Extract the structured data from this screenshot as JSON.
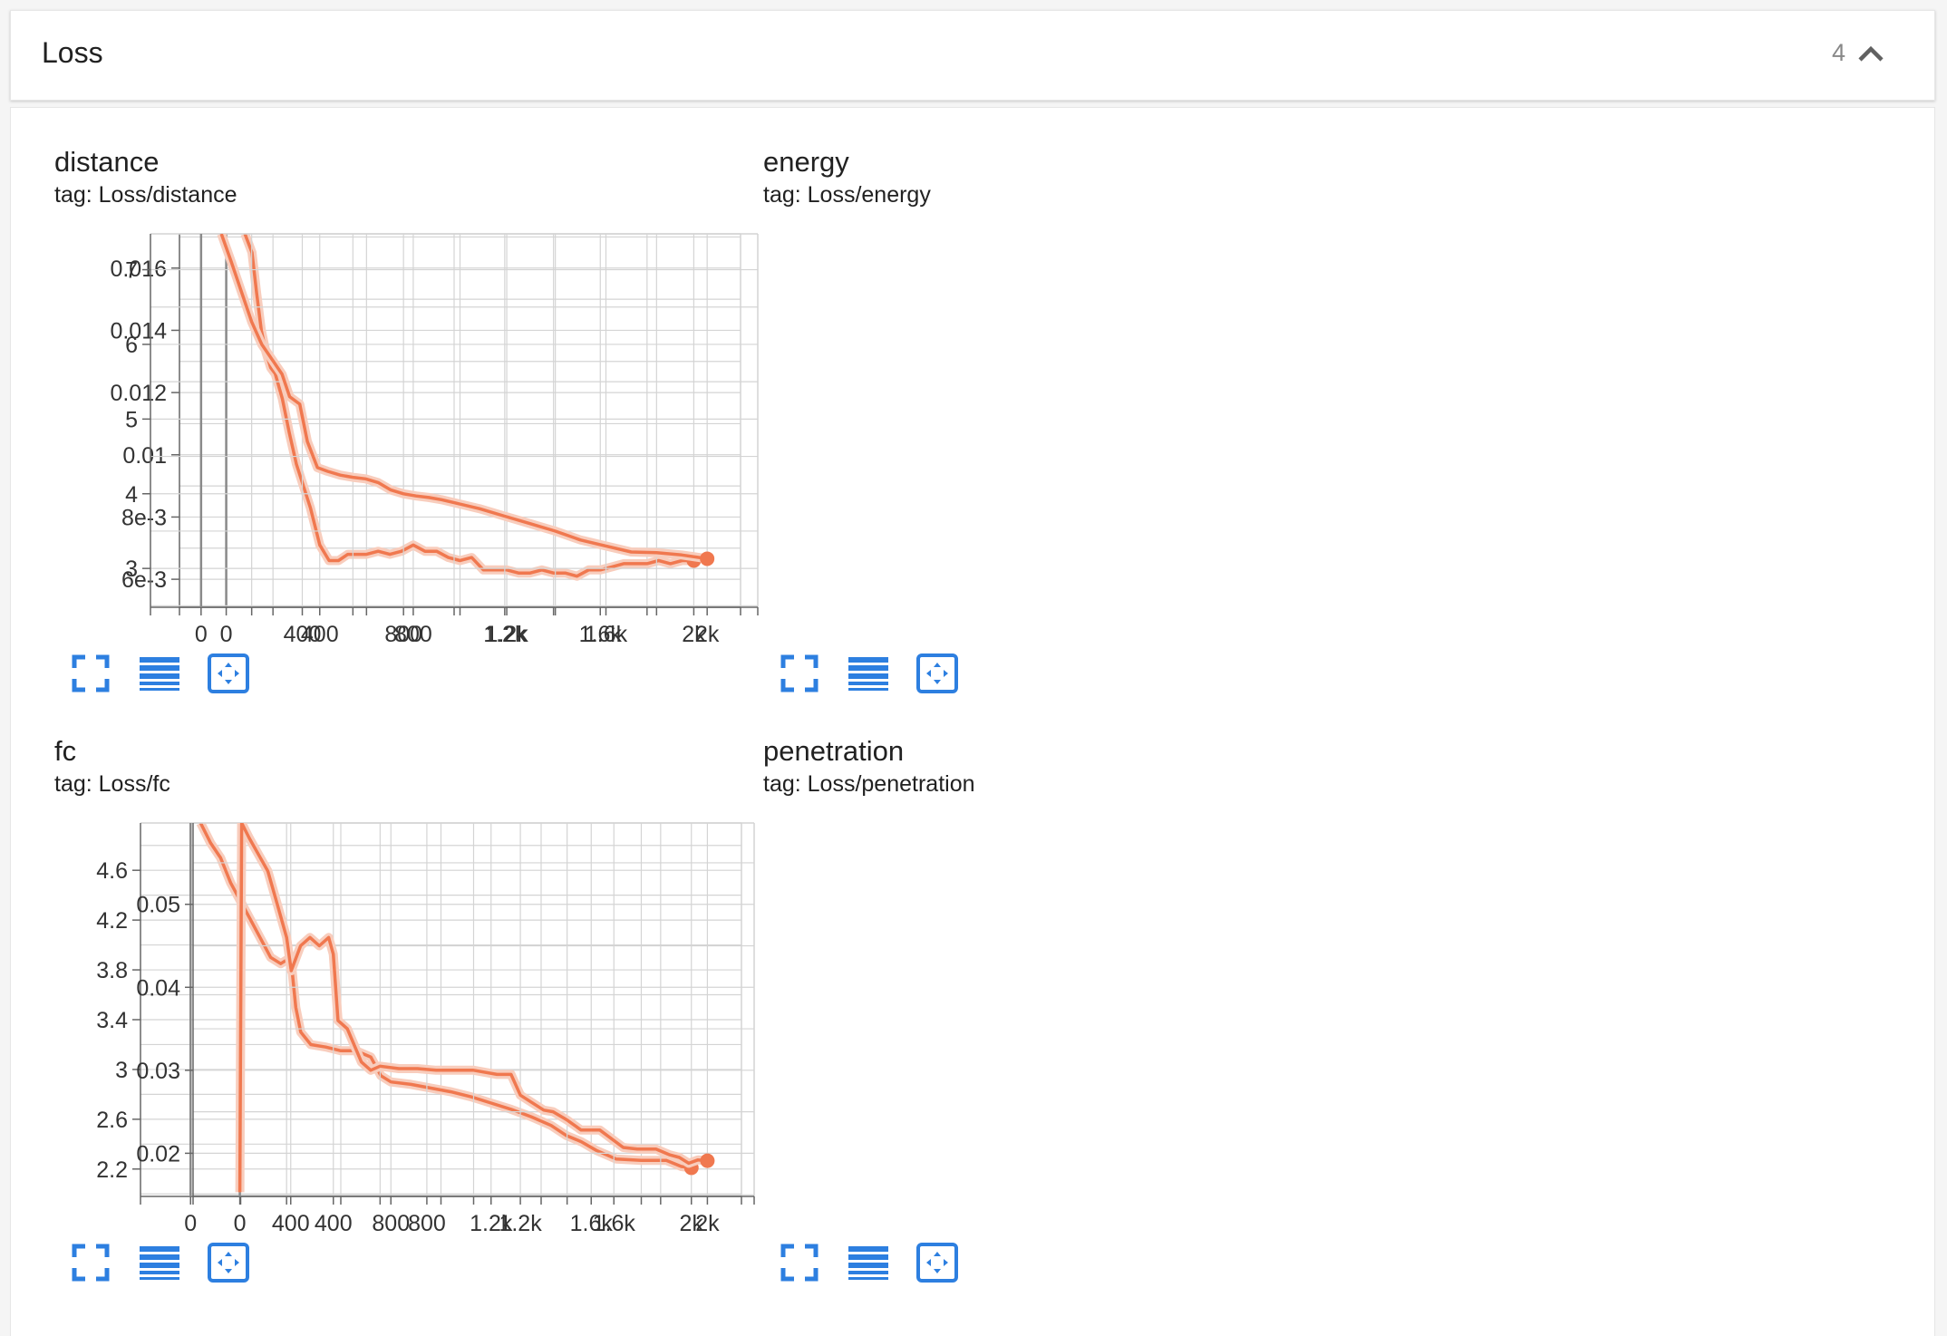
{
  "section": {
    "title": "Loss",
    "count": "4",
    "collapse_icon": "chevron-up-icon"
  },
  "colors": {
    "line": "#f0784f",
    "line_faint": "#f8cdbd",
    "grid": "#d4d4d4",
    "zero_line": "#8a8a8a",
    "tool_icon": "#2d7fe0"
  },
  "toolbar": {
    "icons": [
      "fullscreen-icon",
      "toggle-log-scale-icon",
      "fit-domain-icon"
    ]
  },
  "chart_data": [
    {
      "type": "line",
      "title": "distance",
      "tag": "tag: Loss/distance",
      "xlim": [
        -200,
        2200
      ],
      "ylim": [
        0.0051,
        0.0171
      ],
      "xticks": [
        0,
        400,
        800,
        1200,
        1600,
        2000
      ],
      "xtick_labels": [
        "0",
        "400",
        "800",
        "1.2k",
        "1.6k",
        "2k"
      ],
      "yticks": [
        0.006,
        0.008,
        0.01,
        0.012,
        0.014,
        0.016
      ],
      "ytick_labels": [
        "6e-3",
        "8e-3",
        "0.01",
        "0.012",
        "0.014",
        "0.016"
      ],
      "grid": true,
      "series": [
        {
          "x": [
            80,
            110,
            130,
            150,
            170,
            190,
            210,
            240,
            270,
            300,
            330,
            360,
            400,
            440,
            480,
            520,
            560,
            600,
            650,
            700,
            750,
            800,
            850,
            900,
            950,
            1000,
            1050,
            1100,
            1150,
            1200,
            1250,
            1300,
            1350,
            1400,
            1450,
            1500,
            1550,
            1600,
            1650,
            1700,
            1750,
            1800,
            1850,
            1900,
            1950,
            2000
          ],
          "y": [
            0.0171,
            0.0165,
            0.0152,
            0.014,
            0.0133,
            0.0128,
            0.0126,
            0.0118,
            0.0107,
            0.0097,
            0.009,
            0.0083,
            0.0071,
            0.0066,
            0.0066,
            0.0068,
            0.0068,
            0.0068,
            0.0069,
            0.0068,
            0.0069,
            0.0071,
            0.0069,
            0.0069,
            0.0067,
            0.0066,
            0.0067,
            0.0063,
            0.0063,
            0.0063,
            0.0062,
            0.0062,
            0.0063,
            0.0062,
            0.0062,
            0.0061,
            0.0063,
            0.0063,
            0.0064,
            0.0065,
            0.0065,
            0.0065,
            0.0066,
            0.0065,
            0.0066,
            0.0066
          ]
        }
      ]
    },
    {
      "type": "line",
      "title": "energy",
      "tag": "tag: Loss/energy",
      "xlim": [
        -200,
        2200
      ],
      "ylim": [
        2.48,
        7.48
      ],
      "xticks": [
        0,
        400,
        800,
        1200,
        1600,
        2000
      ],
      "xtick_labels": [
        "0",
        "400",
        "800",
        "1.2k",
        "1.6k",
        "2k"
      ],
      "yticks": [
        3,
        4,
        5,
        6,
        7
      ],
      "ytick_labels": [
        "3",
        "4",
        "5",
        "6",
        "7"
      ],
      "grid": true,
      "series": [
        {
          "x": [
            80,
            120,
            160,
            200,
            240,
            280,
            320,
            350,
            390,
            420,
            460,
            500,
            550,
            600,
            650,
            700,
            750,
            800,
            850,
            900,
            950,
            1000,
            1100,
            1200,
            1300,
            1400,
            1500,
            1600,
            1700,
            1800,
            1900,
            2000
          ],
          "y": [
            7.48,
            7.1,
            6.7,
            6.3,
            6.0,
            5.8,
            5.6,
            5.3,
            5.2,
            4.7,
            4.35,
            4.3,
            4.25,
            4.22,
            4.2,
            4.15,
            4.05,
            4.0,
            3.97,
            3.95,
            3.92,
            3.88,
            3.8,
            3.7,
            3.6,
            3.5,
            3.38,
            3.3,
            3.22,
            3.21,
            3.18,
            3.13
          ]
        }
      ]
    },
    {
      "type": "line",
      "title": "fc",
      "tag": "tag: Loss/fc",
      "xlim": [
        -200,
        2200
      ],
      "ylim": [
        1.98,
        4.98
      ],
      "xticks": [
        0,
        400,
        800,
        1200,
        1600,
        2000
      ],
      "xtick_labels": [
        "0",
        "400",
        "800",
        "1.2k",
        "1.6k",
        "2k"
      ],
      "yticks": [
        2.2,
        2.6,
        3,
        3.4,
        3.8,
        4.2,
        4.6
      ],
      "ytick_labels": [
        "2.2",
        "2.6",
        "3",
        "3.4",
        "3.8",
        "4.2",
        "4.6"
      ],
      "grid": true,
      "series": [
        {
          "x": [
            40,
            80,
            120,
            160,
            200,
            240,
            280,
            320,
            360,
            400,
            420,
            440,
            480,
            540,
            600,
            660,
            720,
            760,
            800,
            880,
            960,
            1040,
            1120,
            1200,
            1280,
            1360,
            1440,
            1500,
            1560,
            1620,
            1700,
            1800,
            1900,
            1960,
            2000
          ],
          "y": [
            4.98,
            4.82,
            4.7,
            4.5,
            4.35,
            4.2,
            4.05,
            3.9,
            3.85,
            3.9,
            3.5,
            3.3,
            3.2,
            3.18,
            3.15,
            3.15,
            3.1,
            2.95,
            2.9,
            2.88,
            2.85,
            2.82,
            2.78,
            2.73,
            2.68,
            2.62,
            2.55,
            2.47,
            2.42,
            2.35,
            2.28,
            2.27,
            2.27,
            2.22,
            2.21
          ]
        }
      ]
    },
    {
      "type": "line",
      "title": "penetration",
      "tag": "tag: Loss/penetration",
      "xlim": [
        -200,
        2200
      ],
      "ylim": [
        0.0148,
        0.0598
      ],
      "xticks": [
        0,
        400,
        800,
        1200,
        1600,
        2000
      ],
      "xtick_labels": [
        "0",
        "400",
        "800",
        "1.2k",
        "1.6k",
        "2k"
      ],
      "yticks": [
        0.02,
        0.03,
        0.04,
        0.05
      ],
      "ytick_labels": [
        "0.02",
        "0.03",
        "0.04",
        "0.05"
      ],
      "grid": true,
      "series": [
        {
          "x": [
            0,
            8,
            40,
            80,
            120,
            160,
            200,
            220,
            260,
            300,
            340,
            380,
            400,
            420,
            460,
            520,
            560,
            600,
            680,
            760,
            840,
            920,
            1000,
            1100,
            1160,
            1200,
            1300,
            1340,
            1400,
            1460,
            1540,
            1640,
            1700,
            1780,
            1840,
            1880,
            1920,
            1960,
            2000
          ],
          "y": [
            0.0153,
            0.0598,
            0.058,
            0.056,
            0.054,
            0.05,
            0.046,
            0.042,
            0.045,
            0.046,
            0.045,
            0.046,
            0.044,
            0.036,
            0.035,
            0.031,
            0.03,
            0.0305,
            0.0302,
            0.0302,
            0.03,
            0.03,
            0.03,
            0.0295,
            0.0295,
            0.027,
            0.0252,
            0.025,
            0.024,
            0.0228,
            0.0228,
            0.0207,
            0.0205,
            0.0205,
            0.0198,
            0.0195,
            0.0188,
            0.0192,
            0.0191
          ]
        }
      ]
    }
  ]
}
